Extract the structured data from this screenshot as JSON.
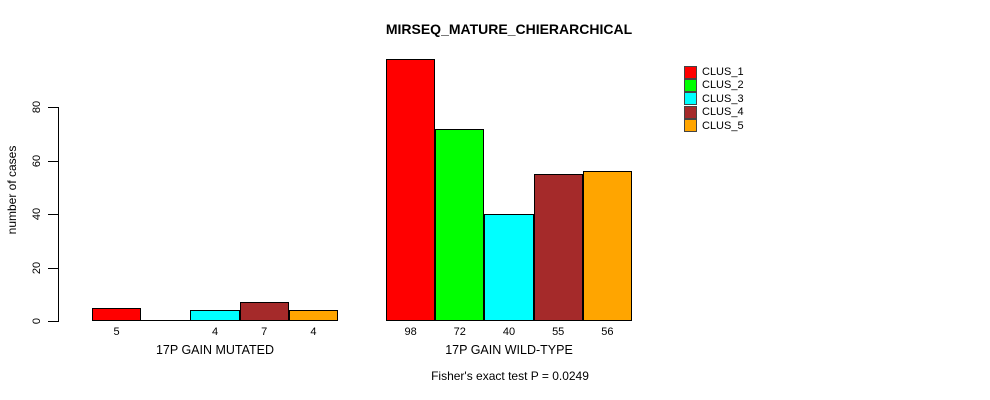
{
  "chart_data": {
    "type": "bar",
    "title": "MIRSEQ_MATURE_CHIERARCHICAL",
    "ylabel": "number of cases",
    "xlabel": "",
    "ylim": [
      0,
      80
    ],
    "yticks": [
      0,
      20,
      40,
      60,
      80
    ],
    "grid": false,
    "legend_position": "top-right",
    "bar_border_color": "#000000",
    "categories": [
      "17P GAIN MUTATED",
      "17P GAIN WILD-TYPE"
    ],
    "series": [
      {
        "name": "CLUS_1",
        "color": "#ff0000",
        "values": [
          5,
          98
        ]
      },
      {
        "name": "CLUS_2",
        "color": "#00ff00",
        "values": [
          0,
          72
        ]
      },
      {
        "name": "CLUS_3",
        "color": "#00ffff",
        "values": [
          4,
          40
        ]
      },
      {
        "name": "CLUS_4",
        "color": "#a52a2a",
        "values": [
          7,
          55
        ]
      },
      {
        "name": "CLUS_5",
        "color": "#ffa500",
        "values": [
          4,
          56
        ]
      },
      {
        "note": "zero-value bars are drawn as a flat baseline segment with no value label"
      }
    ],
    "annotation": "Fisher's exact test P = 0.0249"
  }
}
